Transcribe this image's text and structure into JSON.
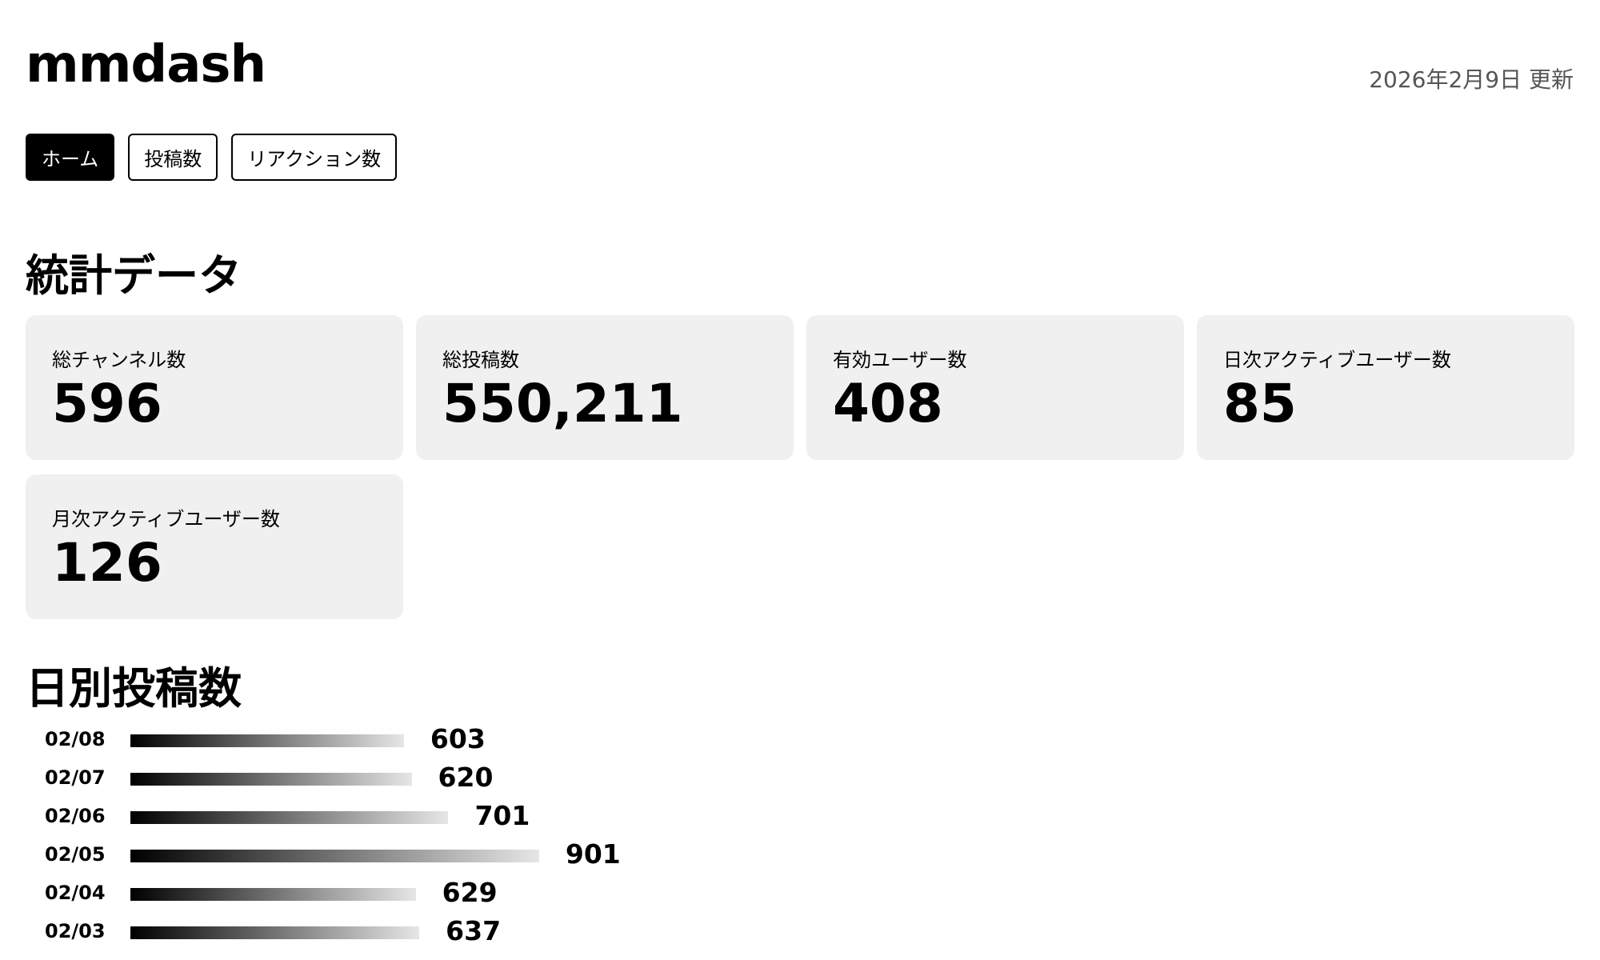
{
  "header": {
    "title": "mmdash",
    "updated": "2026年2月9日 更新"
  },
  "nav": [
    "ホーム",
    "投稿数",
    "リアクション数"
  ],
  "stats": {
    "title": "統計データ",
    "cards": [
      {
        "label": "総チャンネル数",
        "value": "596"
      },
      {
        "label": "総投稿数",
        "value": "550,211"
      },
      {
        "label": "有効ユーザー数",
        "value": "408"
      },
      {
        "label": "日次アクティブユーザー数",
        "value": "85"
      },
      {
        "label": "月次アクティブユーザー数",
        "value": "126"
      }
    ]
  },
  "chart_data": {
    "type": "bar",
    "orientation": "horizontal",
    "title": "日別投稿数",
    "categories": [
      "02/08",
      "02/07",
      "02/06",
      "02/05",
      "02/04",
      "02/03"
    ],
    "values": [
      603,
      620,
      701,
      901,
      629,
      637
    ]
  }
}
